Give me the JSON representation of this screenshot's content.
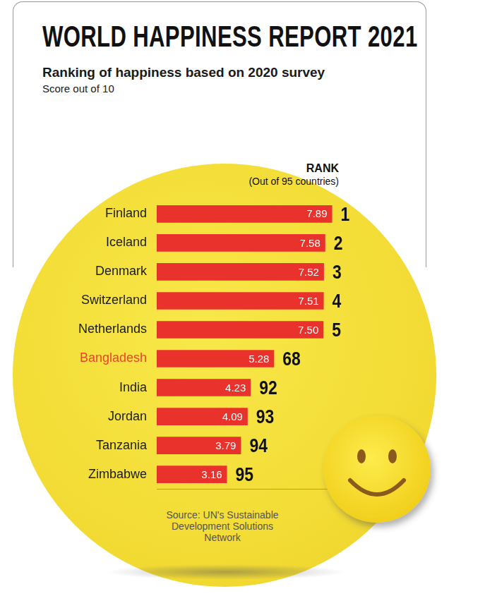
{
  "chart_data": {
    "type": "bar",
    "orientation": "horizontal",
    "title": "WORLD HAPPINESS REPORT 2021",
    "subtitle": "Ranking of happiness based on 2020 survey",
    "xlabel": "Score out of 10",
    "categories": [
      "Finland",
      "Iceland",
      "Denmark",
      "Switzerland",
      "Netherlands",
      "Bangladesh",
      "India",
      "Jordan",
      "Tanzania",
      "Zimbabwe"
    ],
    "values": [
      7.89,
      7.58,
      7.52,
      7.51,
      7.5,
      5.28,
      4.23,
      4.09,
      3.79,
      3.16
    ],
    "value_labels": [
      "7.89",
      "7.58",
      "7.52",
      "7.51",
      "7.50",
      "5.28",
      "4.23",
      "4.09",
      "3.79",
      "3.16"
    ],
    "rank_title": "RANK",
    "rank_subtitle": "(Out of 95 countries)",
    "ranks": [
      1,
      2,
      3,
      4,
      5,
      68,
      92,
      93,
      94,
      95
    ],
    "source": "Source: UN's Sustainable Development Solutions Network",
    "color": "#e8322b",
    "xlim": [
      0,
      10
    ],
    "data_labels": true,
    "tick_labels": "y",
    "grid": false
  }
}
